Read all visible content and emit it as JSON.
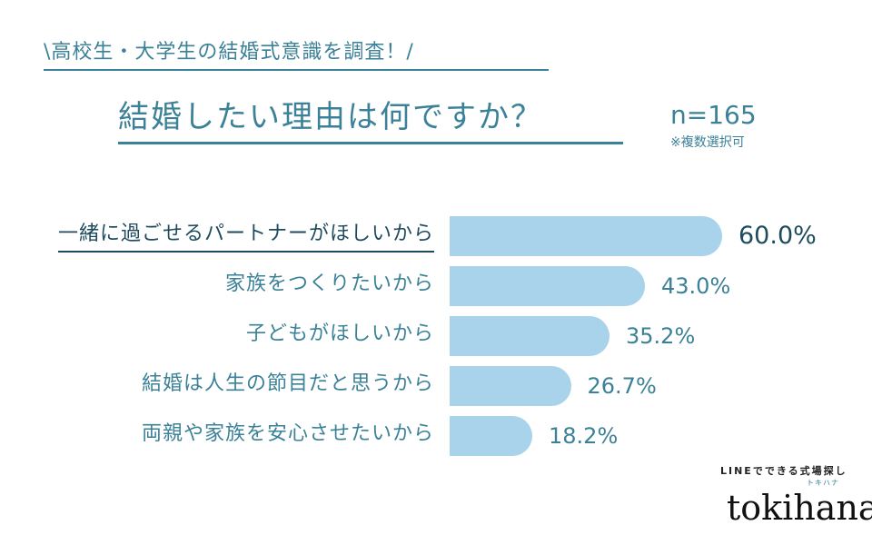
{
  "header": {
    "subtitle": "\\高校生・大学生の結婚式意識を調査！/",
    "title": "結婚したい理由は何ですか？",
    "sample": "n=165",
    "note": "※複数選択可"
  },
  "logo": {
    "tagline": "LINEでできる式場探し",
    "name": "tokihana",
    "kana": "トキハナ"
  },
  "colors": {
    "text": "#3b8197",
    "highlight": "#1e4b5e",
    "bar": "#a8d3ea"
  },
  "chart_data": {
    "type": "bar",
    "orientation": "horizontal",
    "title": "結婚したい理由は何ですか？",
    "categories": [
      "一緒に過ごせるパートナーがほしいから",
      "家族をつくりたいから",
      "子どもがほしいから",
      "結婚は人生の節目だと思うから",
      "両親や家族を安心させたいから"
    ],
    "values": [
      60.0,
      43.0,
      35.2,
      26.7,
      18.2
    ],
    "labels": [
      "60.0%",
      "43.0%",
      "35.2%",
      "26.7%",
      "18.2%"
    ],
    "unit": "%",
    "xlim": [
      0,
      100
    ],
    "grid": false
  }
}
